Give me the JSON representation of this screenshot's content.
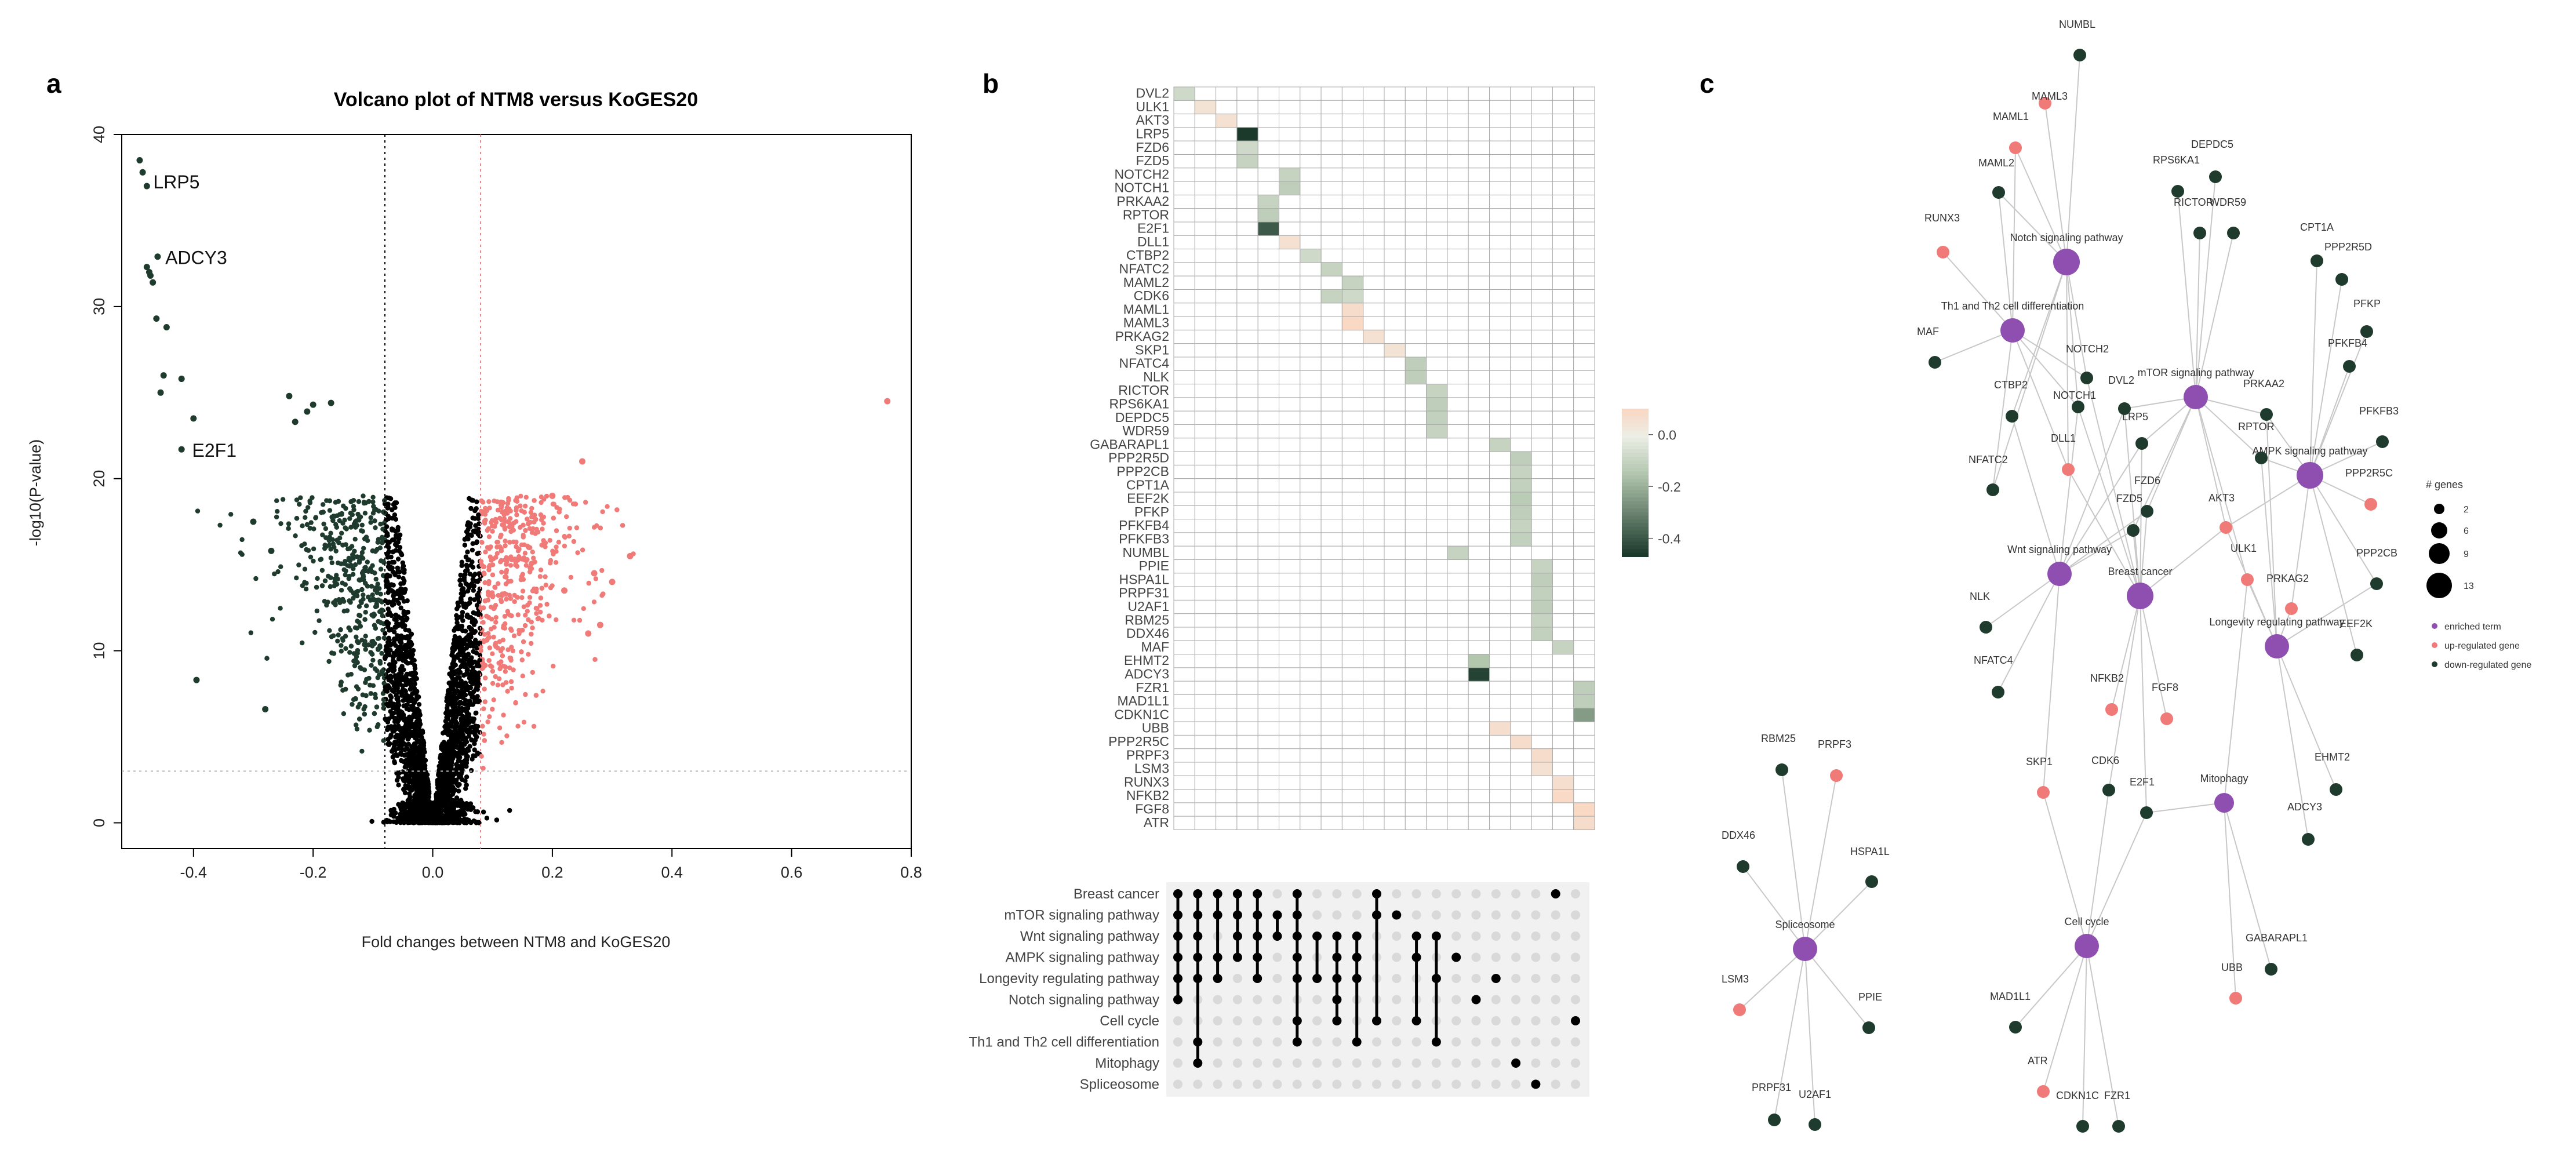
{
  "colors": {
    "up": "#F07A78",
    "down": "#1F3B2E",
    "ns": "#000000",
    "term": "#8E4FB0",
    "edge": "#C8C8C8",
    "vline": "#F08080",
    "grid": "#BBBBBB"
  },
  "panels": {
    "a": "a",
    "b": "b",
    "c": "c"
  },
  "chart_data": [
    {
      "type": "scatter",
      "title": "Volcano plot of NTM8 versus KoGES20",
      "xlabel": "Fold changes between NTM8 and KoGES20",
      "ylabel": "-log10(P-value)",
      "xlim": [
        -0.52,
        0.8
      ],
      "ylim": [
        -1.5,
        40
      ],
      "xticks": [
        -0.4,
        -0.2,
        0.0,
        0.2,
        0.4,
        0.6,
        0.8
      ],
      "xtick_labels": [
        "-0.4",
        "-0.2",
        "0.0",
        "0.2",
        "0.4",
        "0.6",
        "0.8"
      ],
      "yticks": [
        0,
        10,
        20,
        30,
        40
      ],
      "ytick_labels": [
        "0",
        "10",
        "20",
        "30",
        "40"
      ],
      "fc_thresholds": [
        -0.08,
        0.08
      ],
      "p_threshold": 3,
      "labeled_genes": [
        {
          "gene": "LRP5",
          "x": -0.475,
          "y": 37.2
        },
        {
          "gene": "ADCY3",
          "x": -0.455,
          "y": 32.8
        },
        {
          "gene": "E2F1",
          "x": -0.41,
          "y": 21.6
        }
      ],
      "highlighted_points": [
        {
          "x": -0.49,
          "y": 38.5,
          "group": "down"
        },
        {
          "x": -0.485,
          "y": 37.8,
          "group": "down"
        },
        {
          "x": -0.478,
          "y": 37.0,
          "group": "down"
        },
        {
          "x": -0.46,
          "y": 32.9,
          "group": "down"
        },
        {
          "x": -0.478,
          "y": 32.3,
          "group": "down"
        },
        {
          "x": -0.472,
          "y": 31.8,
          "group": "down"
        },
        {
          "x": -0.468,
          "y": 31.4,
          "group": "down"
        },
        {
          "x": -0.474,
          "y": 32.0,
          "group": "down"
        },
        {
          "x": -0.462,
          "y": 29.3,
          "group": "down"
        },
        {
          "x": -0.445,
          "y": 28.8,
          "group": "down"
        },
        {
          "x": -0.45,
          "y": 26.0,
          "group": "down"
        },
        {
          "x": -0.455,
          "y": 25.0,
          "group": "down"
        },
        {
          "x": -0.42,
          "y": 25.8,
          "group": "down"
        },
        {
          "x": -0.4,
          "y": 23.5,
          "group": "down"
        },
        {
          "x": -0.42,
          "y": 21.7,
          "group": "down"
        },
        {
          "x": -0.395,
          "y": 8.3,
          "group": "down"
        },
        {
          "x": -0.24,
          "y": 24.8,
          "group": "down"
        },
        {
          "x": -0.21,
          "y": 23.9,
          "group": "down"
        },
        {
          "x": -0.2,
          "y": 24.3,
          "group": "down"
        },
        {
          "x": -0.23,
          "y": 23.3,
          "group": "down"
        },
        {
          "x": -0.17,
          "y": 24.4,
          "group": "down"
        },
        {
          "x": -0.3,
          "y": 17.5,
          "group": "down"
        },
        {
          "x": -0.27,
          "y": 15.8,
          "group": "down"
        },
        {
          "x": -0.28,
          "y": 6.6,
          "group": "down"
        },
        {
          "x": 0.76,
          "y": 24.5,
          "group": "up"
        },
        {
          "x": 0.25,
          "y": 21.0,
          "group": "up"
        },
        {
          "x": 0.33,
          "y": 15.5,
          "group": "up"
        },
        {
          "x": 0.27,
          "y": 14.5,
          "group": "up"
        },
        {
          "x": 0.3,
          "y": 14.0,
          "group": "up"
        },
        {
          "x": 0.2,
          "y": 19.0,
          "group": "up"
        },
        {
          "x": 0.22,
          "y": 13.5,
          "group": "up"
        },
        {
          "x": 0.28,
          "y": 11.5,
          "group": "up"
        },
        {
          "x": 0.26,
          "y": 11.0,
          "group": "up"
        }
      ]
    },
    {
      "type": "heatmap",
      "genes": [
        "DVL2",
        "ULK1",
        "AKT3",
        "LRP5",
        "FZD6",
        "FZD5",
        "NOTCH2",
        "NOTCH1",
        "PRKAA2",
        "RPTOR",
        "E2F1",
        "DLL1",
        "CTBP2",
        "NFATC2",
        "MAML2",
        "CDK6",
        "MAML1",
        "MAML3",
        "PRKAG2",
        "SKP1",
        "NFATC4",
        "NLK",
        "RICTOR",
        "RPS6KA1",
        "DEPDC5",
        "WDR59",
        "GABARAPL1",
        "PPP2R5D",
        "PPP2CB",
        "CPT1A",
        "EEF2K",
        "PFKP",
        "PFKFB4",
        "PFKFB3",
        "NUMBL",
        "PPIE",
        "HSPA1L",
        "PRPF31",
        "U2AF1",
        "RBM25",
        "DDX46",
        "MAF",
        "EHMT2",
        "ADCY3",
        "FZR1",
        "MAD1L1",
        "CDKN1C",
        "UBB",
        "PPP2R5C",
        "PRPF3",
        "LSM3",
        "RUNX3",
        "NFKB2",
        "FGF8",
        "ATR"
      ],
      "n_columns": 20,
      "cells": [
        {
          "gene": "DVL2",
          "col": 0,
          "v": -0.08
        },
        {
          "gene": "ULK1",
          "col": 1,
          "v": 0.05
        },
        {
          "gene": "AKT3",
          "col": 2,
          "v": 0.06
        },
        {
          "gene": "LRP5",
          "col": 3,
          "v": -0.47
        },
        {
          "gene": "FZD6",
          "col": 3,
          "v": -0.08
        },
        {
          "gene": "FZD5",
          "col": 3,
          "v": -0.1
        },
        {
          "gene": "NOTCH2",
          "col": 5,
          "v": -0.1
        },
        {
          "gene": "NOTCH1",
          "col": 5,
          "v": -0.12
        },
        {
          "gene": "PRKAA2",
          "col": 4,
          "v": -0.1
        },
        {
          "gene": "RPTOR",
          "col": 4,
          "v": -0.12
        },
        {
          "gene": "E2F1",
          "col": 4,
          "v": -0.4
        },
        {
          "gene": "DLL1",
          "col": 5,
          "v": 0.06
        },
        {
          "gene": "CTBP2",
          "col": 6,
          "v": -0.08
        },
        {
          "gene": "NFATC2",
          "col": 7,
          "v": -0.1
        },
        {
          "gene": "MAML2",
          "col": 8,
          "v": -0.1
        },
        {
          "gene": "CDK6",
          "col": 8,
          "v": -0.08
        },
        {
          "gene": "CDK6",
          "col": 7,
          "v": -0.1
        },
        {
          "gene": "MAML1",
          "col": 8,
          "v": 0.08
        },
        {
          "gene": "MAML3",
          "col": 8,
          "v": 0.1
        },
        {
          "gene": "PRKAG2",
          "col": 9,
          "v": 0.06
        },
        {
          "gene": "SKP1",
          "col": 10,
          "v": 0.05
        },
        {
          "gene": "NFATC4",
          "col": 11,
          "v": -0.12
        },
        {
          "gene": "NLK",
          "col": 11,
          "v": -0.12
        },
        {
          "gene": "RICTOR",
          "col": 12,
          "v": -0.1
        },
        {
          "gene": "RPS6KA1",
          "col": 12,
          "v": -0.12
        },
        {
          "gene": "DEPDC5",
          "col": 12,
          "v": -0.11
        },
        {
          "gene": "WDR59",
          "col": 12,
          "v": -0.1
        },
        {
          "gene": "GABARAPL1",
          "col": 15,
          "v": -0.1
        },
        {
          "gene": "PPP2R5D",
          "col": 16,
          "v": -0.12
        },
        {
          "gene": "PPP2CB",
          "col": 16,
          "v": -0.1
        },
        {
          "gene": "CPT1A",
          "col": 16,
          "v": -0.11
        },
        {
          "gene": "EEF2K",
          "col": 16,
          "v": -0.13
        },
        {
          "gene": "PFKP",
          "col": 16,
          "v": -0.12
        },
        {
          "gene": "PFKFB4",
          "col": 16,
          "v": -0.1
        },
        {
          "gene": "PFKFB3",
          "col": 16,
          "v": -0.11
        },
        {
          "gene": "NUMBL",
          "col": 13,
          "v": -0.1
        },
        {
          "gene": "PPIE",
          "col": 17,
          "v": -0.1
        },
        {
          "gene": "HSPA1L",
          "col": 17,
          "v": -0.12
        },
        {
          "gene": "PRPF31",
          "col": 17,
          "v": -0.11
        },
        {
          "gene": "U2AF1",
          "col": 17,
          "v": -0.12
        },
        {
          "gene": "RBM25",
          "col": 17,
          "v": -0.1
        },
        {
          "gene": "DDX46",
          "col": 17,
          "v": -0.11
        },
        {
          "gene": "MAF",
          "col": 18,
          "v": -0.1
        },
        {
          "gene": "EHMT2",
          "col": 14,
          "v": -0.15
        },
        {
          "gene": "ADCY3",
          "col": 14,
          "v": -0.45
        },
        {
          "gene": "FZR1",
          "col": 19,
          "v": -0.12
        },
        {
          "gene": "MAD1L1",
          "col": 19,
          "v": -0.12
        },
        {
          "gene": "CDKN1C",
          "col": 19,
          "v": -0.25
        },
        {
          "gene": "UBB",
          "col": 15,
          "v": 0.07
        },
        {
          "gene": "PPP2R5C",
          "col": 16,
          "v": 0.08
        },
        {
          "gene": "PRPF3",
          "col": 17,
          "v": 0.08
        },
        {
          "gene": "LSM3",
          "col": 17,
          "v": 0.06
        },
        {
          "gene": "RUNX3",
          "col": 18,
          "v": 0.07
        },
        {
          "gene": "NFKB2",
          "col": 18,
          "v": 0.09
        },
        {
          "gene": "FGF8",
          "col": 19,
          "v": 0.1
        },
        {
          "gene": "ATR",
          "col": 19,
          "v": 0.08
        }
      ],
      "legend_ticks": [
        "0.0",
        "-0.2",
        "-0.4"
      ],
      "legend_range": [
        -0.47,
        0.1
      ]
    },
    {
      "type": "upset",
      "sets": [
        "Breast cancer",
        "mTOR signaling pathway",
        "Wnt signaling pathway",
        "AMPK signaling pathway",
        "Longevity regulating pathway",
        "Notch signaling pathway",
        "Cell cycle",
        "Th1 and Th2 cell differentiation",
        "Mitophagy",
        "Spliceosome"
      ],
      "columns": [
        [
          0,
          1,
          2,
          3,
          4,
          5
        ],
        [
          0,
          1,
          2,
          3,
          4,
          7,
          8
        ],
        [
          0,
          1,
          3,
          4
        ],
        [
          0,
          1,
          2,
          3
        ],
        [
          0,
          1,
          2,
          3,
          4
        ],
        [
          1,
          2
        ],
        [
          0,
          1,
          2,
          3,
          4,
          6,
          7
        ],
        [
          2,
          4
        ],
        [
          2,
          3,
          4,
          5,
          6
        ],
        [
          2,
          3,
          4,
          7
        ],
        [
          0,
          1,
          6
        ],
        [
          1
        ],
        [
          2,
          3,
          6
        ],
        [
          2,
          4,
          7
        ],
        [
          3
        ],
        [
          5
        ],
        [
          4
        ],
        [
          8
        ],
        [
          9
        ],
        [
          0
        ],
        [
          6
        ]
      ]
    },
    {
      "type": "network",
      "terms": [
        {
          "id": "notch",
          "label": "Notch signaling pathway",
          "size": 13
        },
        {
          "id": "th",
          "label": "Th1 and Th2 cell differentiation",
          "size": 9
        },
        {
          "id": "mtor",
          "label": "mTOR signaling pathway",
          "size": 9
        },
        {
          "id": "ampk",
          "label": "AMPK signaling pathway",
          "size": 13
        },
        {
          "id": "wnt",
          "label": "Wnt signaling pathway",
          "size": 9
        },
        {
          "id": "breast",
          "label": "Breast cancer",
          "size": 13
        },
        {
          "id": "longevity",
          "label": "Longevity regulating pathway",
          "size": 9
        },
        {
          "id": "mitophagy",
          "label": "Mitophagy",
          "size": 6
        },
        {
          "id": "cellcycle",
          "label": "Cell cycle",
          "size": 9
        },
        {
          "id": "spliceosome",
          "label": "Spliceosome",
          "size": 9
        }
      ],
      "genes": [
        {
          "label": "NUMBL",
          "reg": "down"
        },
        {
          "label": "MAML3",
          "reg": "up"
        },
        {
          "label": "MAML1",
          "reg": "up"
        },
        {
          "label": "MAML2",
          "reg": "down"
        },
        {
          "label": "DEPDC5",
          "reg": "down"
        },
        {
          "label": "RPS6KA1",
          "reg": "down"
        },
        {
          "label": "RICTOR",
          "reg": "down"
        },
        {
          "label": "WDR59",
          "reg": "down"
        },
        {
          "label": "CPT1A",
          "reg": "down"
        },
        {
          "label": "PPP2R5D",
          "reg": "down"
        },
        {
          "label": "PFKP",
          "reg": "down"
        },
        {
          "label": "PFKFB4",
          "reg": "down"
        },
        {
          "label": "PFKFB3",
          "reg": "down"
        },
        {
          "label": "RUNX3",
          "reg": "up"
        },
        {
          "label": "MAF",
          "reg": "down"
        },
        {
          "label": "CTBP2",
          "reg": "down"
        },
        {
          "label": "NOTCH2",
          "reg": "down"
        },
        {
          "label": "NOTCH1",
          "reg": "down"
        },
        {
          "label": "DVL2",
          "reg": "down"
        },
        {
          "label": "DLL1",
          "reg": "up"
        },
        {
          "label": "NFATC2",
          "reg": "down"
        },
        {
          "label": "LRP5",
          "reg": "down"
        },
        {
          "label": "FZD6",
          "reg": "down"
        },
        {
          "label": "FZD5",
          "reg": "down"
        },
        {
          "label": "PRKAA2",
          "reg": "down"
        },
        {
          "label": "RPTOR",
          "reg": "down"
        },
        {
          "label": "AKT3",
          "reg": "up"
        },
        {
          "label": "PPP2R5C",
          "reg": "up"
        },
        {
          "label": "ULK1",
          "reg": "up"
        },
        {
          "label": "PPP2CB",
          "reg": "down"
        },
        {
          "label": "PRKAG2",
          "reg": "up"
        },
        {
          "label": "EEF2K",
          "reg": "down"
        },
        {
          "label": "NLK",
          "reg": "down"
        },
        {
          "label": "NFATC4",
          "reg": "down"
        },
        {
          "label": "NFKB2",
          "reg": "up"
        },
        {
          "label": "FGF8",
          "reg": "up"
        },
        {
          "label": "EHMT2",
          "reg": "down"
        },
        {
          "label": "ADCY3",
          "reg": "down"
        },
        {
          "label": "SKP1",
          "reg": "up"
        },
        {
          "label": "CDK6",
          "reg": "down"
        },
        {
          "label": "E2F1",
          "reg": "down"
        },
        {
          "label": "GABARAPL1",
          "reg": "down"
        },
        {
          "label": "UBB",
          "reg": "up"
        },
        {
          "label": "MAD1L1",
          "reg": "down"
        },
        {
          "label": "ATR",
          "reg": "up"
        },
        {
          "label": "CDKN1C",
          "reg": "down"
        },
        {
          "label": "FZR1",
          "reg": "down"
        },
        {
          "label": "RBM25",
          "reg": "down"
        },
        {
          "label": "PRPF3",
          "reg": "up"
        },
        {
          "label": "DDX46",
          "reg": "down"
        },
        {
          "label": "HSPA1L",
          "reg": "down"
        },
        {
          "label": "LSM3",
          "reg": "up"
        },
        {
          "label": "PPIE",
          "reg": "down"
        },
        {
          "label": "PRPF31",
          "reg": "down"
        },
        {
          "label": "U2AF1",
          "reg": "down"
        }
      ],
      "size_legend": {
        "title": "# genes",
        "values": [
          "2",
          "6",
          "9",
          "13"
        ]
      },
      "color_legend": [
        "enriched term",
        "up-regulated gene",
        "down-regulated gene"
      ]
    }
  ]
}
